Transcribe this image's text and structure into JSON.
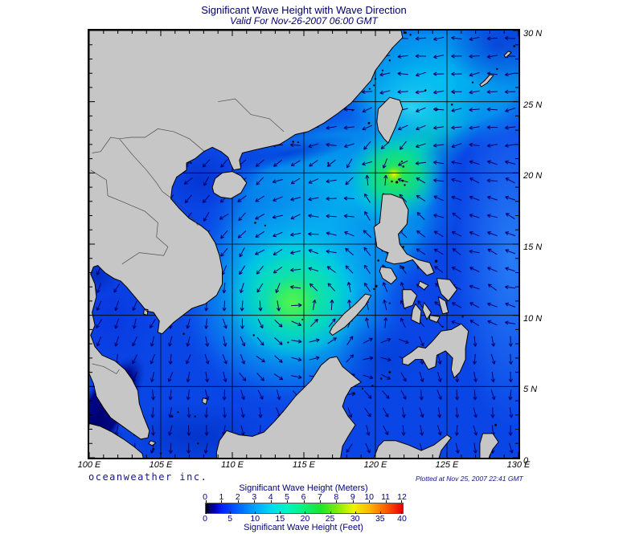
{
  "title": "Significant Wave Height with Wave Direction",
  "subtitle": "Valid For Nov-26-2007 06:00 GMT",
  "map": {
    "lon_ticks": [
      "100 E",
      "105 E",
      "110 E",
      "115 E",
      "120 E",
      "125 E",
      "130 E"
    ],
    "lat_ticks": [
      "30 N",
      "25 N",
      "20 N",
      "15 N",
      "10 N",
      "5 N",
      "0"
    ],
    "lon_range": [
      100,
      130
    ],
    "lat_range": [
      0,
      30
    ],
    "grid_interval_deg": 5,
    "minor_tick_deg": 1
  },
  "branding": {
    "name": "oceanweather inc.",
    "plotted_at": "Plotted at Nov 25, 2007 22:41 GMT"
  },
  "colorbar": {
    "meters_label": "Significant Wave Height (Meters)",
    "feet_label": "Significant Wave Height (Feet)",
    "meters_ticks": [
      0,
      1,
      2,
      3,
      4,
      5,
      6,
      7,
      8,
      9,
      10,
      11,
      12
    ],
    "feet_ticks": [
      0,
      5,
      10,
      15,
      20,
      25,
      30,
      35,
      40
    ],
    "max_meters": 12,
    "gradient": [
      {
        "at": 0,
        "c": "#000000"
      },
      {
        "at": 0.02,
        "c": "#00006e"
      },
      {
        "at": 0.045,
        "c": "#0000b4"
      },
      {
        "at": 0.0833,
        "c": "#0022ff"
      },
      {
        "at": 0.1667,
        "c": "#0064ff"
      },
      {
        "at": 0.25,
        "c": "#00a4ff"
      },
      {
        "at": 0.3333,
        "c": "#00d8f4"
      },
      {
        "at": 0.4167,
        "c": "#00f6c0"
      },
      {
        "at": 0.5,
        "c": "#0df07a"
      },
      {
        "at": 0.5833,
        "c": "#1ee42e"
      },
      {
        "at": 0.6667,
        "c": "#7fec0c"
      },
      {
        "at": 0.75,
        "c": "#eef400"
      },
      {
        "at": 0.8333,
        "c": "#ffb400"
      },
      {
        "at": 0.9167,
        "c": "#ff5a00"
      },
      {
        "at": 1,
        "c": "#e60000"
      }
    ]
  },
  "chart_data": {
    "type": "map",
    "title": "Significant Wave Height with Wave Direction",
    "region": "South China Sea / Western North Pacific",
    "bounds": {
      "lon": [
        100,
        130
      ],
      "lat": [
        0,
        30
      ]
    },
    "units": {
      "primary": "meters",
      "secondary": "feet"
    },
    "scale_max_m": 12,
    "overlay": "wave direction arrows on ~1.25 degree grid, navy open-head vectors",
    "features": [
      {
        "name": "storm-swirl",
        "lon": 114.3,
        "lat": 11.2,
        "peak_hs_m": 5.5,
        "pattern": "cyclonic counterclockwise wave directions around green core"
      },
      {
        "name": "luzon-strait-maximum",
        "lon": 121.4,
        "lat": 19.8,
        "peak_hs_m": 9,
        "pattern": "small yellow core, converging wave directions"
      },
      {
        "name": "east-china-sea",
        "hs_m": 3,
        "pattern": "cyan field, westward waves"
      },
      {
        "name": "philippine-sea",
        "hs_m": 2,
        "pattern": "blue field, west-northwestward waves"
      },
      {
        "name": "gulf-of-thailand",
        "hs_m": 1.2,
        "pattern": "southward waves"
      },
      {
        "name": "malacca-strait-calm",
        "lon": 101,
        "lat": 3.5,
        "peak_hs_m": 0.3,
        "pattern": "near-black calm water"
      }
    ]
  }
}
